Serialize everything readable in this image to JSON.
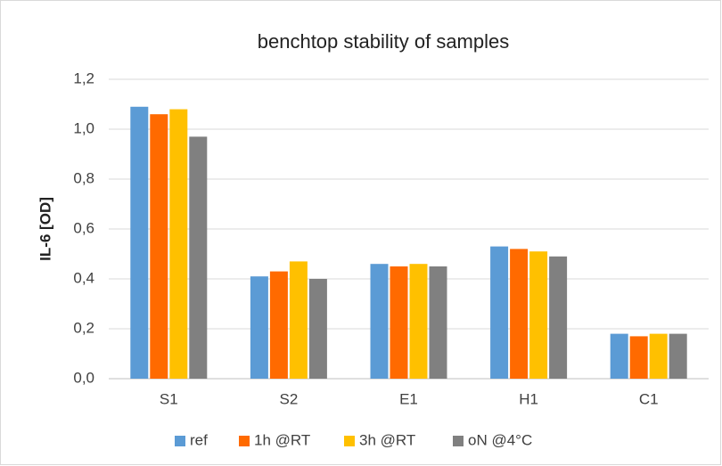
{
  "chart_data": {
    "type": "bar",
    "title": "benchtop stability of  samples",
    "y_label": "IL-6 [OD]",
    "categories": [
      "S1",
      "S2",
      "E1",
      "H1",
      "C1"
    ],
    "series": [
      {
        "name": "ref",
        "color": "#5b9bd5",
        "values": [
          1.09,
          0.41,
          0.46,
          0.53,
          0.18
        ]
      },
      {
        "name": "1h @RT",
        "color": "#ff6a00",
        "values": [
          1.06,
          0.43,
          0.45,
          0.52,
          0.17
        ]
      },
      {
        "name": "3h @RT",
        "color": "#ffc000",
        "values": [
          1.08,
          0.47,
          0.46,
          0.51,
          0.18
        ]
      },
      {
        "name": "oN @4°C",
        "color": "#808080",
        "values": [
          0.97,
          0.4,
          0.45,
          0.49,
          0.18
        ]
      }
    ],
    "ylim": [
      0,
      1.2
    ],
    "yticks": [
      {
        "value": 0,
        "label": "0,0"
      },
      {
        "value": 0.2,
        "label": "0,2"
      },
      {
        "value": 0.4,
        "label": "0,4"
      },
      {
        "value": 0.6,
        "label": "0,6"
      },
      {
        "value": 0.8,
        "label": "0,8"
      },
      {
        "value": 1.0,
        "label": "1,0"
      },
      {
        "value": 1.2,
        "label": "1,2"
      }
    ],
    "grid": true,
    "legend": "bottom"
  }
}
